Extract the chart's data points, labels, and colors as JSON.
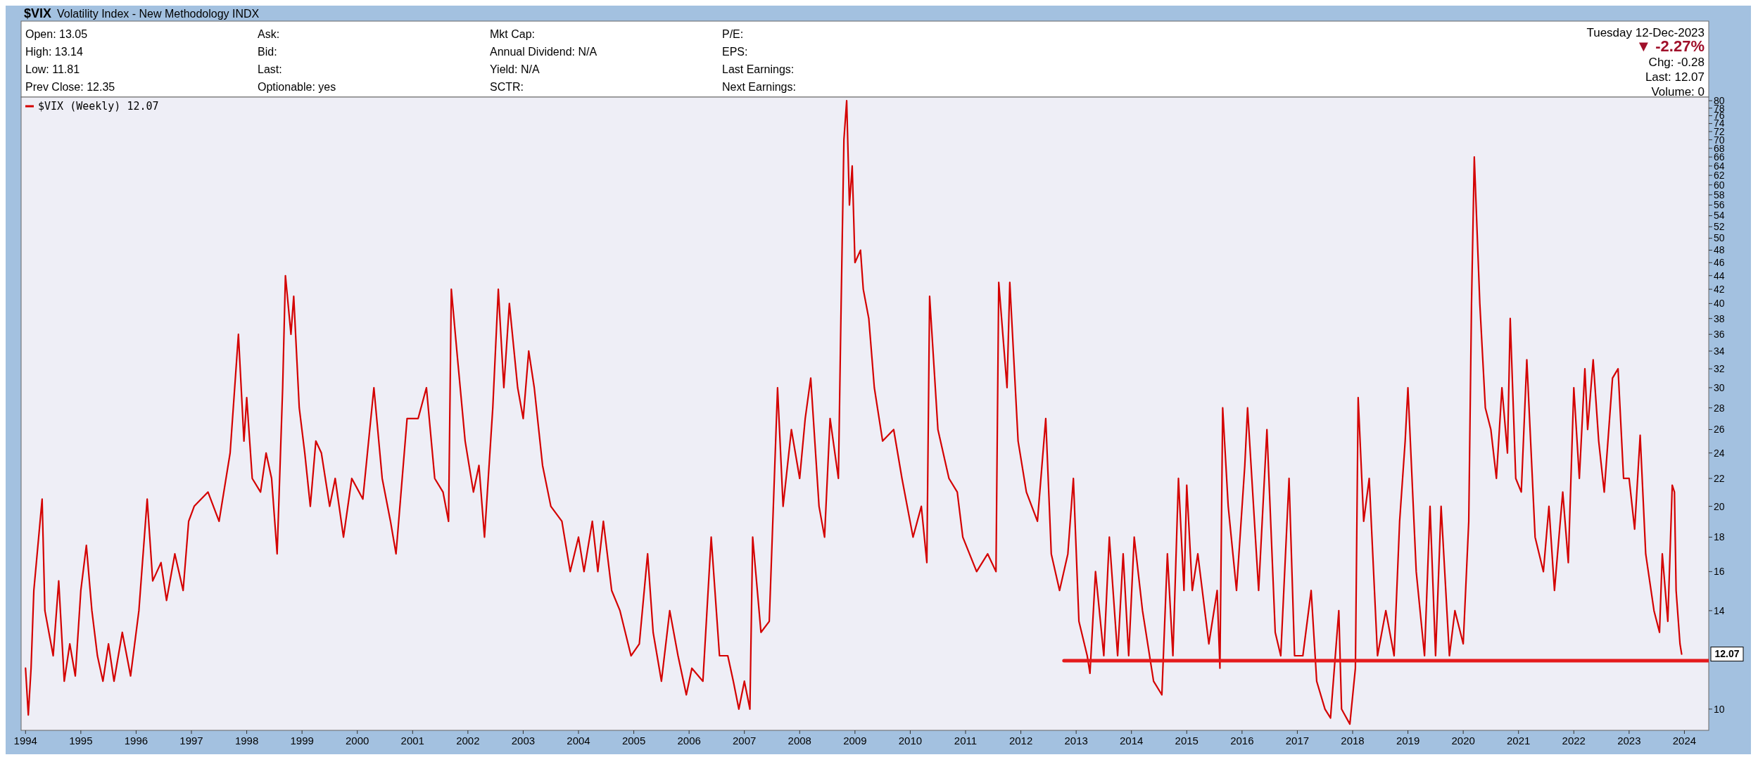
{
  "chart_data": {
    "type": "line",
    "title": "$VIX",
    "subtitle": "Volatility Index - New Methodology INDX",
    "annotations": [
      "Open: 13.05",
      "High: 13.14",
      "Low: 11.81",
      "Prev Close: 12.35",
      "Ask:",
      "Bid:",
      "Last:",
      "Optionable: yes",
      "Mkt Cap:",
      "Annual Dividend: N/A",
      "Yield: N/A",
      "SCTR:",
      "P/E:",
      "EPS:",
      "Last Earnings:",
      "Next Earnings:",
      "Tuesday 12-Dec-2023",
      "▼ -2.27%",
      "Chg: -0.28",
      "Last: 12.07",
      "Volume: 0",
      "12.07"
    ],
    "log": "y",
    "legend": "top left",
    "xlim": [
      1993.92,
      2024.44
    ],
    "ylim": [
      9.3,
      81
    ],
    "xticks": [
      1994,
      1995,
      1996,
      1997,
      1998,
      1999,
      2000,
      2001,
      2002,
      2003,
      2004,
      2005,
      2006,
      2007,
      2008,
      2009,
      2010,
      2011,
      2012,
      2013,
      2014,
      2015,
      2016,
      2017,
      2018,
      2019,
      2020,
      2021,
      2022,
      2023,
      2024
    ],
    "yticks": [
      10,
      14,
      16,
      18,
      20,
      22,
      24,
      26,
      28,
      30,
      32,
      34,
      36,
      38,
      40,
      42,
      44,
      46,
      48,
      50,
      52,
      54,
      56,
      58,
      60,
      62,
      64,
      66,
      68,
      70,
      72,
      74,
      76,
      78,
      80
    ],
    "series": [
      {
        "name": "$VIX (Weekly) 12.07",
        "color": "#d40000",
        "x": [
          1994.0,
          1994.05,
          1994.1,
          1994.15,
          1994.3,
          1994.35,
          1994.5,
          1994.6,
          1994.7,
          1994.8,
          1994.9,
          1995.0,
          1995.1,
          1995.2,
          1995.3,
          1995.4,
          1995.5,
          1995.6,
          1995.75,
          1995.9,
          1996.05,
          1996.2,
          1996.3,
          1996.45,
          1996.55,
          1996.7,
          1996.85,
          1996.95,
          1997.05,
          1997.3,
          1997.5,
          1997.7,
          1997.85,
          1997.95,
          1998.0,
          1998.1,
          1998.25,
          1998.35,
          1998.45,
          1998.55,
          1998.65,
          1998.7,
          1998.8,
          1998.85,
          1998.95,
          1999.05,
          1999.15,
          1999.25,
          1999.35,
          1999.5,
          1999.6,
          1999.75,
          1999.9,
          2000.1,
          2000.3,
          2000.45,
          2000.6,
          2000.7,
          2000.9,
          2001.1,
          2001.25,
          2001.4,
          2001.55,
          2001.65,
          2001.7,
          2001.8,
          2001.95,
          2002.1,
          2002.2,
          2002.3,
          2002.45,
          2002.55,
          2002.65,
          2002.75,
          2002.9,
          2003.0,
          2003.1,
          2003.2,
          2003.35,
          2003.5,
          2003.7,
          2003.85,
          2004.0,
          2004.1,
          2004.25,
          2004.35,
          2004.45,
          2004.6,
          2004.75,
          2004.95,
          2005.1,
          2005.25,
          2005.35,
          2005.5,
          2005.65,
          2005.8,
          2005.95,
          2006.05,
          2006.25,
          2006.4,
          2006.55,
          2006.7,
          2006.8,
          2006.9,
          2007.0,
          2007.1,
          2007.15,
          2007.3,
          2007.45,
          2007.6,
          2007.7,
          2007.85,
          2008.0,
          2008.1,
          2008.2,
          2008.35,
          2008.45,
          2008.55,
          2008.7,
          2008.75,
          2008.8,
          2008.85,
          2008.9,
          2008.95,
          2009.0,
          2009.1,
          2009.15,
          2009.25,
          2009.35,
          2009.5,
          2009.7,
          2009.85,
          2010.05,
          2010.2,
          2010.3,
          2010.35,
          2010.5,
          2010.7,
          2010.85,
          2010.95,
          2011.2,
          2011.4,
          2011.55,
          2011.6,
          2011.75,
          2011.8,
          2011.95,
          2012.1,
          2012.3,
          2012.45,
          2012.55,
          2012.7,
          2012.85,
          2012.95,
          2013.05,
          2013.2,
          2013.25,
          2013.35,
          2013.5,
          2013.6,
          2013.75,
          2013.85,
          2013.95,
          2014.05,
          2014.2,
          2014.4,
          2014.55,
          2014.65,
          2014.75,
          2014.85,
          2014.95,
          2015.0,
          2015.1,
          2015.2,
          2015.4,
          2015.55,
          2015.6,
          2015.65,
          2015.75,
          2015.9,
          2016.05,
          2016.1,
          2016.3,
          2016.45,
          2016.6,
          2016.7,
          2016.85,
          2016.95,
          2017.1,
          2017.25,
          2017.35,
          2017.5,
          2017.6,
          2017.75,
          2017.8,
          2017.95,
          2018.05,
          2018.1,
          2018.2,
          2018.3,
          2018.45,
          2018.6,
          2018.75,
          2018.85,
          2018.95,
          2019.0,
          2019.15,
          2019.3,
          2019.4,
          2019.5,
          2019.6,
          2019.75,
          2019.85,
          2020.0,
          2020.1,
          2020.15,
          2020.2,
          2020.3,
          2020.4,
          2020.5,
          2020.6,
          2020.7,
          2020.8,
          2020.85,
          2020.95,
          2021.05,
          2021.15,
          2021.3,
          2021.45,
          2021.55,
          2021.65,
          2021.8,
          2021.9,
          2022.0,
          2022.1,
          2022.2,
          2022.25,
          2022.35,
          2022.45,
          2022.55,
          2022.7,
          2022.8,
          2022.9,
          2023.0,
          2023.1,
          2023.2,
          2023.3,
          2023.45,
          2023.55,
          2023.6,
          2023.7,
          2023.78,
          2023.82,
          2023.85,
          2023.92,
          2023.95
        ],
        "values": [
          11.5,
          9.8,
          11.5,
          15,
          20.5,
          14,
          12,
          15.5,
          11,
          12.5,
          11.2,
          15,
          17.5,
          14,
          12,
          11,
          12.5,
          11,
          13,
          11.2,
          14,
          20.5,
          15.5,
          16.5,
          14.5,
          17,
          15,
          19,
          20,
          21,
          19,
          24,
          36,
          25,
          29,
          22,
          21,
          24,
          22,
          17,
          30,
          44,
          36,
          41,
          28,
          24,
          20,
          25,
          24,
          20,
          22,
          18,
          22,
          20.5,
          30,
          22,
          19,
          17,
          27,
          27,
          30,
          22,
          21,
          19,
          42,
          34,
          25,
          21,
          23,
          18,
          28,
          42,
          30,
          40,
          30,
          27,
          34,
          30,
          23,
          20,
          19,
          16,
          18,
          16,
          19,
          16,
          19,
          15,
          14,
          12,
          12.5,
          17,
          13,
          11,
          14,
          12,
          10.5,
          11.5,
          11,
          18,
          12,
          12,
          11,
          10,
          11,
          10,
          18,
          13,
          13.5,
          30,
          20,
          26,
          22,
          27,
          31,
          20,
          18,
          27,
          22,
          40,
          70,
          80,
          56,
          64,
          46,
          48,
          42,
          38,
          30,
          25,
          26,
          22,
          18,
          20,
          16.5,
          41,
          26,
          22,
          21,
          18,
          16,
          17,
          16,
          43,
          30,
          43,
          25,
          21,
          19,
          27,
          17,
          15,
          17,
          22,
          13.5,
          12,
          11.3,
          16,
          12,
          18,
          12,
          17,
          12,
          18,
          14,
          11,
          10.5,
          17,
          12,
          22,
          15,
          21.5,
          15,
          17,
          12.5,
          15,
          11.5,
          28,
          20,
          15,
          23,
          28,
          15,
          26,
          13,
          12,
          22,
          12,
          12,
          15,
          11,
          10,
          9.7,
          14,
          10,
          9.5,
          11.5,
          29,
          19,
          22,
          12,
          14,
          12,
          19,
          25,
          30,
          16,
          12,
          20,
          12,
          20,
          12,
          14,
          12.5,
          19,
          40,
          66,
          40,
          28,
          26,
          22,
          30,
          24,
          38,
          22,
          21,
          33,
          18,
          16,
          20,
          15,
          21,
          16.5,
          30,
          22,
          32,
          26,
          33,
          25,
          21,
          31,
          32,
          22,
          22,
          18.5,
          25.5,
          17,
          14,
          13,
          17,
          13.5,
          21.5,
          21,
          15,
          12.5,
          12.07
        ]
      },
      {
        "type": "line",
        "color": "#e41a1c",
        "x": [
          2012.78,
          2024.44
        ],
        "values": [
          11.8,
          11.8
        ]
      }
    ]
  }
}
